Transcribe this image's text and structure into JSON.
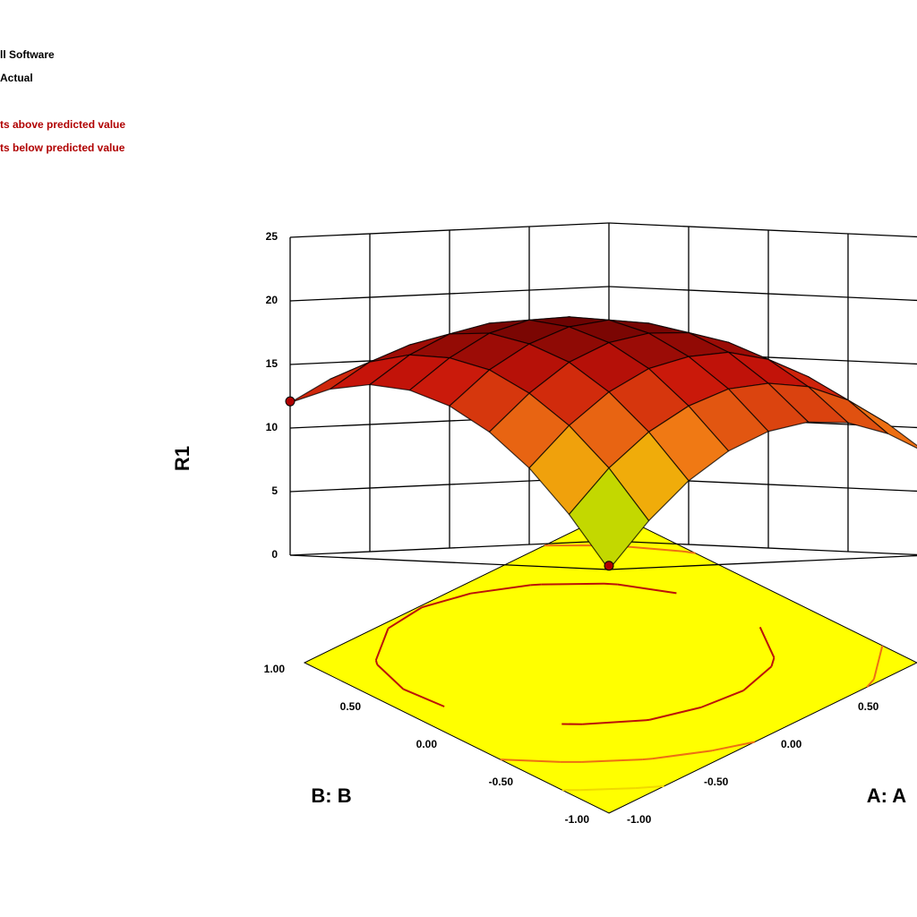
{
  "chart_data": {
    "type": "surface",
    "annotations": [
      {
        "text": "ll Software",
        "color": "#000000"
      },
      {
        "text": "Actual",
        "color": "#000000"
      },
      {
        "text": "ts above predicted value",
        "color": "#b00000"
      },
      {
        "text": "ts below predicted value",
        "color": "#b00000"
      }
    ],
    "x_label": "A: A",
    "y_label": "B: B",
    "z_label": "R1",
    "x": [
      -1,
      -0.75,
      -0.5,
      -0.25,
      0,
      0.25,
      0.5,
      0.75,
      1
    ],
    "y": [
      -1,
      -0.75,
      -0.5,
      -0.25,
      0,
      0.25,
      0.5,
      0.75,
      1
    ],
    "z": [
      [
        0.0,
        3.7,
        6.7,
        8.9,
        10.3,
        10.9,
        10.7,
        9.7,
        8.0
      ],
      [
        4.2,
        7.7,
        10.4,
        12.3,
        13.5,
        13.8,
        13.4,
        12.2,
        10.2
      ],
      [
        7.7,
        10.9,
        13.4,
        15.1,
        15.9,
        16.1,
        15.4,
        13.9,
        11.7
      ],
      [
        10.4,
        13.3,
        15.6,
        17.0,
        17.6,
        17.5,
        16.6,
        14.8,
        12.4
      ],
      [
        12.3,
        15.0,
        16.9,
        18.1,
        18.5,
        18.1,
        16.9,
        15.0,
        12.3
      ],
      [
        13.4,
        15.8,
        17.6,
        18.5,
        18.6,
        18.0,
        16.6,
        14.3,
        11.4
      ],
      [
        13.7,
        15.9,
        17.4,
        18.1,
        17.9,
        17.1,
        15.4,
        12.9,
        9.7
      ],
      [
        13.2,
        15.2,
        16.4,
        16.8,
        16.5,
        15.3,
        13.4,
        10.7,
        7.2
      ],
      [
        12.0,
        13.7,
        14.7,
        14.9,
        14.3,
        12.9,
        10.7,
        7.7,
        4.0
      ]
    ],
    "xlim": [
      -1,
      1
    ],
    "ylim": [
      -1,
      1
    ],
    "zlim": [
      0,
      25
    ],
    "xticks": [
      {
        "value": -1,
        "label": "-1.00"
      },
      {
        "value": -0.5,
        "label": "-0.50"
      },
      {
        "value": 0,
        "label": "0.00"
      },
      {
        "value": 0.5,
        "label": "0.50"
      }
    ],
    "yticks": [
      {
        "value": 1,
        "label": "1.00"
      },
      {
        "value": 0.5,
        "label": "0.50"
      },
      {
        "value": 0,
        "label": "0.00"
      },
      {
        "value": -0.5,
        "label": "-0.50"
      },
      {
        "value": -1,
        "label": "-1.00"
      }
    ],
    "zticks": [
      0,
      5,
      10,
      15,
      20,
      25
    ],
    "floor_color": "#ffff00",
    "design_points": {
      "x": [
        -1,
        -1
      ],
      "y": [
        1,
        -1
      ],
      "z": [
        12.1,
        0.3
      ],
      "color": "#b00000"
    }
  }
}
